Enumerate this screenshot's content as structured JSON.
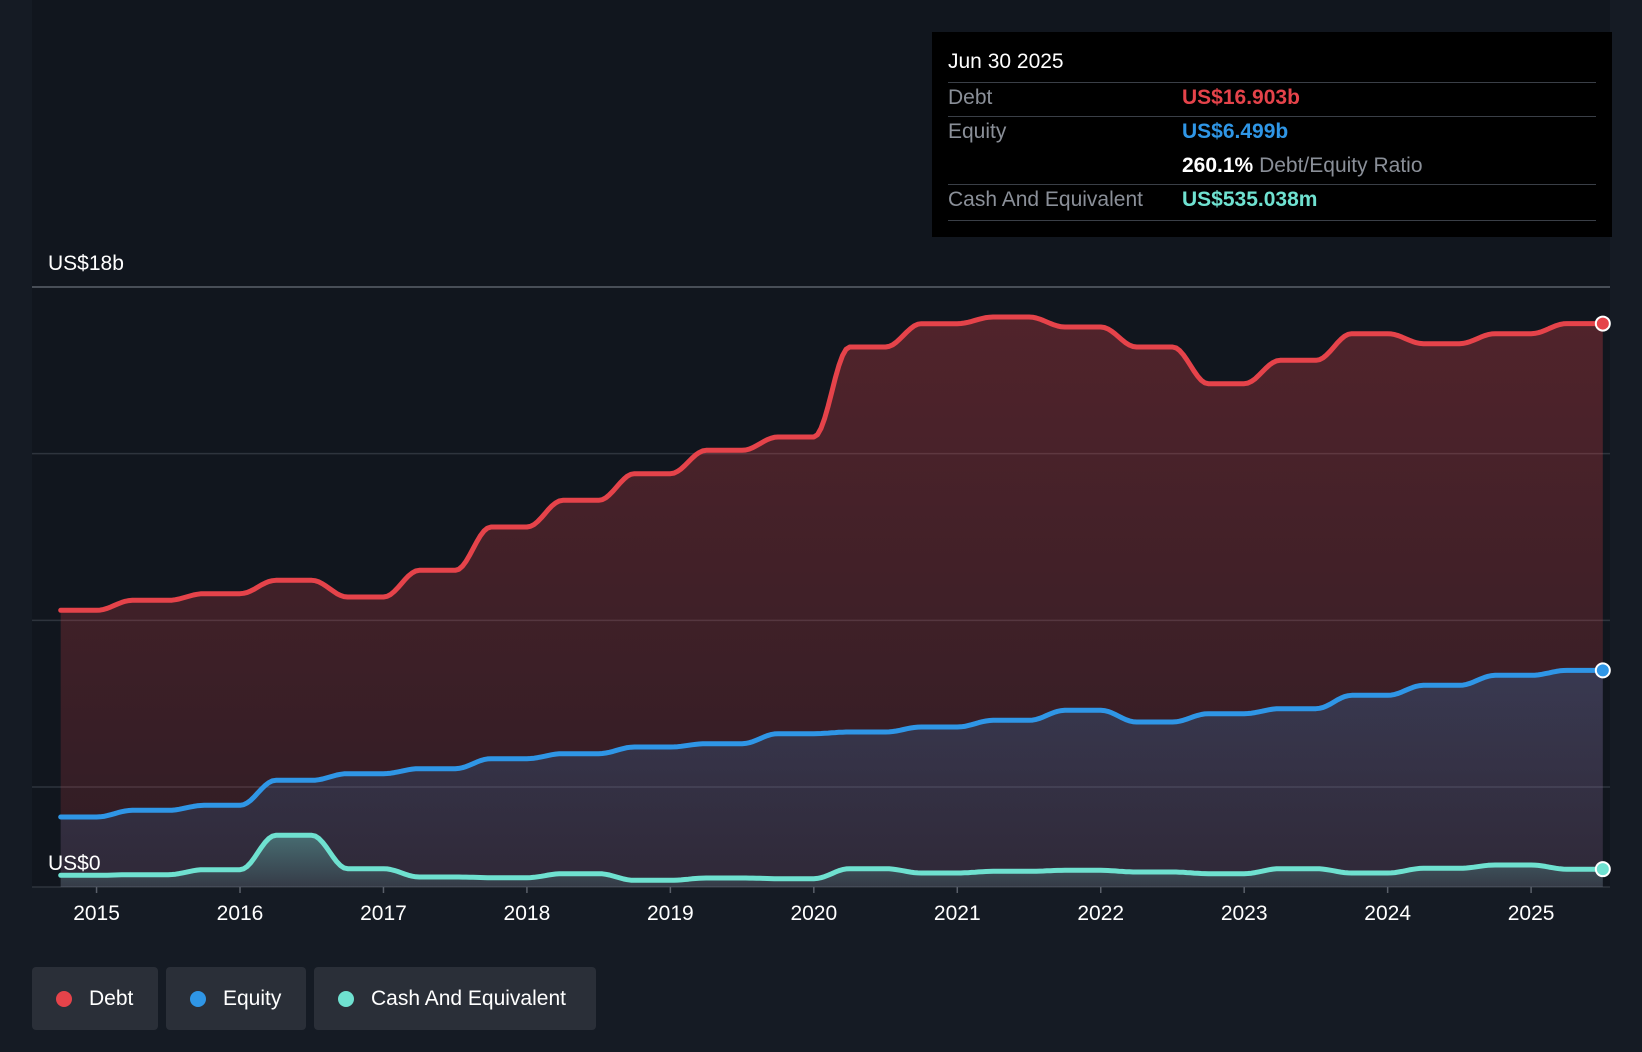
{
  "colors": {
    "background": "#151b24",
    "debt": "#e5434a",
    "equity": "#2f96e6",
    "cash": "#6fe1d0",
    "grid": "#3a3f47"
  },
  "tooltip": {
    "date": "Jun 30 2025",
    "debt_label": "Debt",
    "debt_value": "US$16.903b",
    "equity_label": "Equity",
    "equity_value": "US$6.499b",
    "ratio_value": "260.1%",
    "ratio_label": "Debt/Equity Ratio",
    "cash_label": "Cash And Equivalent",
    "cash_value": "US$535.038m"
  },
  "legend": [
    {
      "label": "Debt",
      "color": "#e5434a"
    },
    {
      "label": "Equity",
      "color": "#2f96e6"
    },
    {
      "label": "Cash And Equivalent",
      "color": "#6fe1d0"
    }
  ],
  "chart_data": {
    "type": "area",
    "title": "",
    "xlabel": "",
    "ylabel": "",
    "y_top_label": "US$18b",
    "y_bottom_label": "US$0",
    "ylim": [
      0,
      18
    ],
    "xlim": [
      2014.55,
      2025.55
    ],
    "grid": true,
    "x_ticks": [
      "2015",
      "2016",
      "2017",
      "2018",
      "2019",
      "2020",
      "2021",
      "2022",
      "2023",
      "2024",
      "2025"
    ],
    "x": [
      2014.75,
      2015.0,
      2015.25,
      2015.5,
      2015.75,
      2016.0,
      2016.25,
      2016.5,
      2016.75,
      2017.0,
      2017.25,
      2017.5,
      2017.75,
      2018.0,
      2018.25,
      2018.5,
      2018.75,
      2019.0,
      2019.25,
      2019.5,
      2019.75,
      2020.0,
      2020.25,
      2020.5,
      2020.75,
      2021.0,
      2021.25,
      2021.5,
      2021.75,
      2022.0,
      2022.25,
      2022.5,
      2022.75,
      2023.0,
      2023.25,
      2023.5,
      2023.75,
      2024.0,
      2024.25,
      2024.5,
      2024.75,
      2025.0,
      2025.25,
      2025.5
    ],
    "series": [
      {
        "name": "Debt",
        "values": [
          8.3,
          8.3,
          8.6,
          8.6,
          8.8,
          8.8,
          9.2,
          9.2,
          8.7,
          8.7,
          9.5,
          9.5,
          10.8,
          10.8,
          11.6,
          11.6,
          12.4,
          12.4,
          13.1,
          13.1,
          13.5,
          13.5,
          16.2,
          16.2,
          16.9,
          16.9,
          17.1,
          17.1,
          16.8,
          16.8,
          16.2,
          16.2,
          15.1,
          15.1,
          15.8,
          15.8,
          16.6,
          16.6,
          16.3,
          16.3,
          16.6,
          16.6,
          16.903,
          16.903
        ]
      },
      {
        "name": "Equity",
        "values": [
          2.1,
          2.1,
          2.3,
          2.3,
          2.45,
          2.45,
          3.2,
          3.2,
          3.4,
          3.4,
          3.55,
          3.55,
          3.85,
          3.85,
          4.0,
          4.0,
          4.2,
          4.2,
          4.3,
          4.3,
          4.6,
          4.6,
          4.65,
          4.65,
          4.8,
          4.8,
          5.0,
          5.0,
          5.3,
          5.3,
          4.95,
          4.95,
          5.2,
          5.2,
          5.35,
          5.35,
          5.75,
          5.75,
          6.05,
          6.05,
          6.35,
          6.35,
          6.499,
          6.499
        ]
      },
      {
        "name": "Cash And Equivalent",
        "values": [
          0.35,
          0.35,
          0.37,
          0.37,
          0.52,
          0.52,
          1.55,
          1.55,
          0.55,
          0.55,
          0.3,
          0.3,
          0.28,
          0.28,
          0.4,
          0.4,
          0.2,
          0.2,
          0.27,
          0.27,
          0.25,
          0.25,
          0.55,
          0.55,
          0.42,
          0.42,
          0.47,
          0.47,
          0.5,
          0.5,
          0.45,
          0.45,
          0.4,
          0.4,
          0.55,
          0.55,
          0.42,
          0.42,
          0.56,
          0.56,
          0.66,
          0.66,
          0.535,
          0.535
        ]
      }
    ]
  }
}
